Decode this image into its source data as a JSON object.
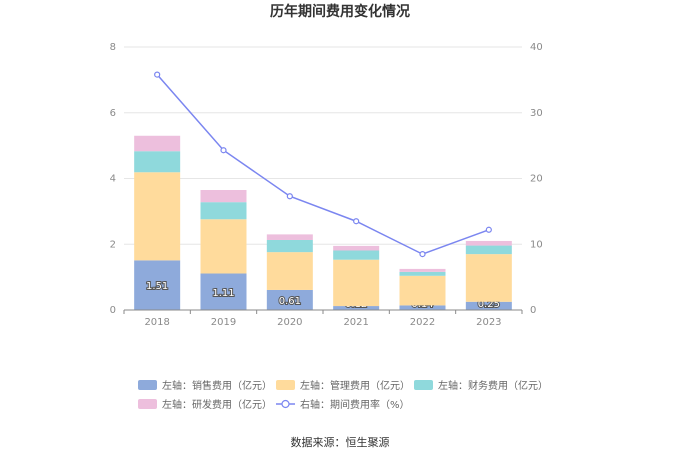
{
  "chart_data": {
    "type": "bar",
    "title": "历年期间费用变化情况",
    "categories": [
      "2018",
      "2019",
      "2020",
      "2021",
      "2022",
      "2023"
    ],
    "stacked": true,
    "left_axis": {
      "ylim": [
        0,
        8
      ],
      "ticks": [
        "0",
        "2",
        "4",
        "6",
        "8"
      ]
    },
    "right_axis": {
      "ylim": [
        0,
        40
      ],
      "ticks": [
        "0",
        "10",
        "20",
        "30",
        "40"
      ]
    },
    "series": [
      {
        "name": "左轴：销售费用（亿元）",
        "type": "bar",
        "axis": "left",
        "color": "#8eaadb",
        "values": [
          1.51,
          1.11,
          0.61,
          0.12,
          0.14,
          0.25
        ],
        "labels": [
          "1.51",
          "1.11",
          "0.61",
          "0.12",
          "0.14",
          "0.25"
        ]
      },
      {
        "name": "左轴：管理费用（亿元）",
        "type": "bar",
        "axis": "left",
        "color": "#ffdb9c",
        "values": [
          2.68,
          1.65,
          1.15,
          1.41,
          0.9,
          1.45
        ]
      },
      {
        "name": "左轴：财务费用（亿元）",
        "type": "bar",
        "axis": "left",
        "color": "#8fd9dc",
        "values": [
          0.64,
          0.52,
          0.37,
          0.28,
          0.12,
          0.26
        ]
      },
      {
        "name": "左轴：研发费用（亿元）",
        "type": "bar",
        "axis": "left",
        "color": "#edbfdd",
        "values": [
          0.47,
          0.37,
          0.17,
          0.14,
          0.09,
          0.14
        ]
      },
      {
        "name": "右轴：期间费用率（%）",
        "type": "line",
        "axis": "right",
        "color": "#7b86f0",
        "values": [
          35.8,
          24.3,
          17.3,
          13.5,
          8.5,
          12.2
        ]
      }
    ],
    "grid": true,
    "legend_position": "bottom"
  },
  "source_text": "数据来源：恒生聚源"
}
